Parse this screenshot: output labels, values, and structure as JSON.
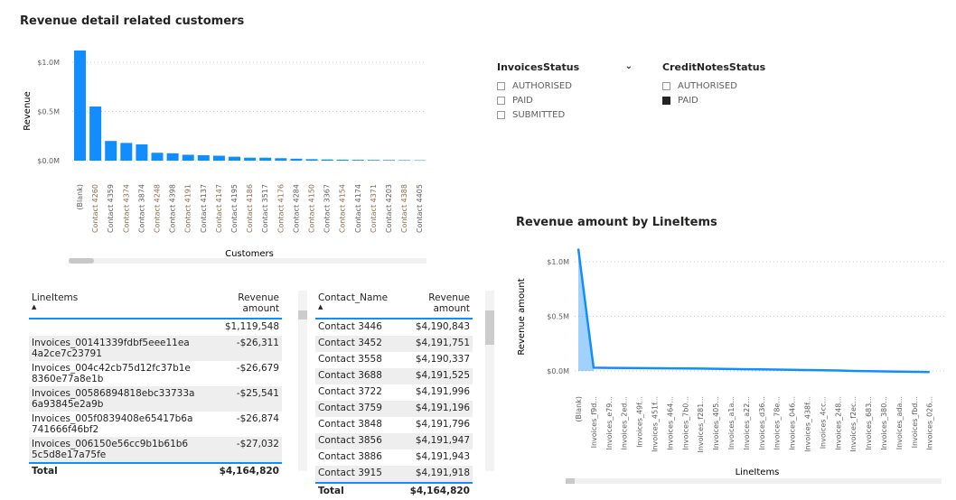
{
  "chart1": {
    "title": "Revenue detail related customers",
    "chart_data": {
      "type": "bar",
      "xlabel": "Customers",
      "ylabel": "Revenue",
      "yticks": [
        "$0.0M",
        "$0.5M",
        "$1.0M"
      ],
      "ylim": [
        0,
        1.2
      ],
      "color": "#118dff",
      "categories": [
        "(Blank)",
        "Contact 4260",
        "Contact 4359",
        "Contact 4374",
        "Contact 3874",
        "Contact 4248",
        "Contact 4398",
        "Contact 4191",
        "Contact 4137",
        "Contact 4147",
        "Contact 4195",
        "Contact 4186",
        "Contact 3517",
        "Contact 4176",
        "Contact 4284",
        "Contact 4150",
        "Contact 3367",
        "Contact 4154",
        "Contact 4174",
        "Contact 4371",
        "Contact 4203",
        "Contact 4388",
        "Contact 4405"
      ],
      "values": [
        1.12,
        0.55,
        0.2,
        0.18,
        0.165,
        0.08,
        0.075,
        0.06,
        0.055,
        0.05,
        0.04,
        0.03,
        0.03,
        0.025,
        0.02,
        0.015,
        0.012,
        0.01,
        0.008,
        0.007,
        0.006,
        0.005,
        0.004
      ]
    }
  },
  "slicer1": {
    "title": "InvoicesStatus",
    "options": [
      {
        "label": "AUTHORISED",
        "checked": false
      },
      {
        "label": "PAID",
        "checked": false
      },
      {
        "label": "SUBMITTED",
        "checked": false
      }
    ]
  },
  "slicer2": {
    "title": "CreditNotesStatus",
    "options": [
      {
        "label": "AUTHORISED",
        "checked": false
      },
      {
        "label": "PAID",
        "checked": true
      }
    ]
  },
  "chart2": {
    "title": "Revenue amount by LineItems",
    "chart_data": {
      "type": "area",
      "xlabel": "LineItems",
      "ylabel": "Revenue amount",
      "yticks": [
        "$0.0M",
        "$0.5M",
        "$1.0M"
      ],
      "ylim": [
        -0.1,
        1.2
      ],
      "color": "#118dff",
      "categories": [
        "(Blank)",
        "Invoices_f9d...",
        "Invoices_e79...",
        "Invoices_2ed...",
        "Invoices_49f...",
        "Invoices_451f...",
        "Invoices_464...",
        "Invoices_7b0...",
        "Invoices_f281...",
        "Invoices_405...",
        "Invoices_a1a...",
        "Invoices_a22...",
        "Invoices_d36...",
        "Invoices_78e...",
        "Invoices_046...",
        "Invoices_438f...",
        "Invoices_4cc...",
        "Invoices_248...",
        "Invoices_f2ec...",
        "Invoices_683...",
        "Invoices_380...",
        "Invoices_ada...",
        "Invoices_fbd...",
        "Invoices_026..."
      ],
      "values": [
        1.12,
        0.03,
        0.028,
        0.027,
        0.026,
        0.025,
        0.024,
        0.023,
        0.022,
        0.02,
        0.018,
        0.016,
        0.014,
        0.012,
        0.01,
        0.008,
        0.006,
        0.004,
        0.0,
        -0.002,
        -0.004,
        -0.006,
        -0.008,
        -0.01
      ]
    }
  },
  "table1": {
    "headers": [
      "LineItems",
      "Revenue amount"
    ],
    "rows": [
      [
        "",
        "$1,119,548"
      ],
      [
        "Invoices_00141339fdbf5eee11ea 4a2ce7c23791",
        "-$26,311"
      ],
      [
        "Invoices_004c42cb75d12fc37b1e 8360e77a8e1b",
        "-$26,679"
      ],
      [
        "Invoices_00586894818ebc33733a 6a93845e2a9b",
        "-$25,541"
      ],
      [
        "Invoices_005f0839408e65417b6a 741666f46bf2",
        "-$26,874"
      ],
      [
        "Invoices_006150e56cc9b1b61b6 5c5d8e17a75fe",
        "-$27,032"
      ]
    ],
    "total": [
      "Total",
      "$4,164,820"
    ]
  },
  "table2": {
    "headers": [
      "Contact_Name",
      "Revenue amount"
    ],
    "rows": [
      [
        "Contact 3446",
        "$4,190,843"
      ],
      [
        "Contact 3452",
        "$4,191,751"
      ],
      [
        "Contact 3558",
        "$4,190,337"
      ],
      [
        "Contact 3688",
        "$4,191,525"
      ],
      [
        "Contact 3722",
        "$4,191,996"
      ],
      [
        "Contact 3759",
        "$4,191,196"
      ],
      [
        "Contact 3848",
        "$4,191,796"
      ],
      [
        "Contact 3856",
        "$4,191,947"
      ],
      [
        "Contact 3886",
        "$4,191,943"
      ],
      [
        "Contact 3915",
        "$4,191,918"
      ]
    ],
    "total": [
      "Total",
      "$4,164,820"
    ]
  }
}
